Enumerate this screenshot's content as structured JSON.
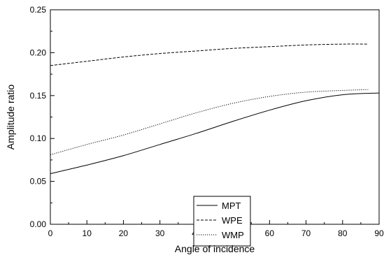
{
  "chart_data": {
    "type": "line",
    "title": "",
    "xlabel": "Angle of incidence",
    "ylabel": "Amplitude ratio",
    "xlim": [
      0,
      90
    ],
    "ylim": [
      0.0,
      0.25
    ],
    "x_ticks": [
      0,
      10,
      20,
      30,
      40,
      50,
      60,
      70,
      80,
      90
    ],
    "x_tick_labels": [
      "0",
      "10",
      "20",
      "30",
      "40",
      "50",
      "60",
      "70",
      "80",
      "90"
    ],
    "y_ticks": [
      0.0,
      0.05,
      0.1,
      0.15,
      0.2,
      0.25
    ],
    "y_tick_labels": [
      "0.00",
      "0.05",
      "0.10",
      "0.15",
      "0.20",
      "0.25"
    ],
    "grid": false,
    "legend_position": "center",
    "series": [
      {
        "name": "MPT",
        "line_style": "solid",
        "color": "#000000",
        "x": [
          0,
          10,
          20,
          30,
          40,
          50,
          60,
          70,
          80,
          90
        ],
        "y": [
          0.059,
          0.069,
          0.08,
          0.093,
          0.106,
          0.12,
          0.133,
          0.144,
          0.151,
          0.153
        ]
      },
      {
        "name": "WPE",
        "line_style": "dashed",
        "color": "#000000",
        "x": [
          0,
          10,
          20,
          30,
          40,
          50,
          60,
          70,
          80,
          87
        ],
        "y": [
          0.185,
          0.19,
          0.195,
          0.199,
          0.202,
          0.205,
          0.207,
          0.209,
          0.21,
          0.21
        ]
      },
      {
        "name": "WMP",
        "line_style": "dotted",
        "color": "#000000",
        "x": [
          0,
          10,
          20,
          30,
          40,
          50,
          60,
          70,
          80,
          87
        ],
        "y": [
          0.081,
          0.093,
          0.104,
          0.117,
          0.13,
          0.141,
          0.149,
          0.154,
          0.156,
          0.157
        ]
      }
    ]
  }
}
